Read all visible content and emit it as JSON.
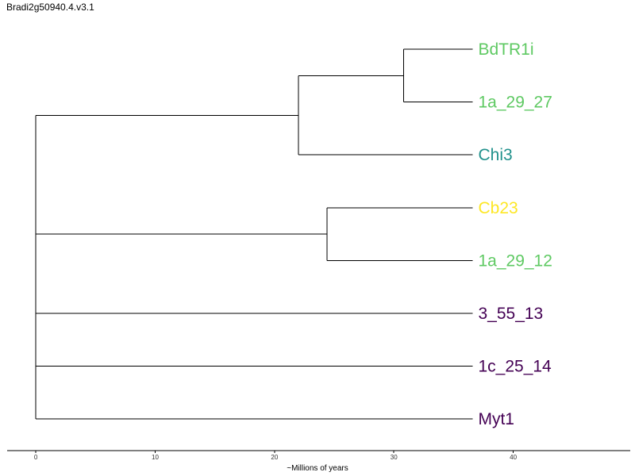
{
  "title": "Bradi2g50940.4.v3.1",
  "chart_data": {
    "type": "dendrogram",
    "title": "Bradi2g50940.4.v3.1",
    "xlabel": "~Millions of years",
    "xticks": [
      0,
      10,
      20,
      30,
      40
    ],
    "xlim": [
      -2.4,
      49.8
    ],
    "root_age": 36.6,
    "leaves": [
      {
        "name": "BdTR1i",
        "color": "#5ec962"
      },
      {
        "name": "1a_29_27",
        "color": "#5ec962"
      },
      {
        "name": "Chi3",
        "color": "#21918c"
      },
      {
        "name": "Cb23",
        "color": "#fde725"
      },
      {
        "name": "1a_29_12",
        "color": "#5ec962"
      },
      {
        "name": "3_55_13",
        "color": "#440154"
      },
      {
        "name": "1c_25_14",
        "color": "#440154"
      },
      {
        "name": "Myt1",
        "color": "#440154"
      }
    ],
    "nodes": [
      {
        "id": "n1",
        "x": 30.8,
        "children": [
          "BdTR1i",
          "1a_29_27"
        ]
      },
      {
        "id": "n2",
        "x": 22.0,
        "children": [
          "n1",
          "Chi3"
        ]
      },
      {
        "id": "n3",
        "x": 24.4,
        "children": [
          "Cb23",
          "1a_29_12"
        ]
      },
      {
        "id": "root",
        "x": 0,
        "children": [
          "n2",
          "n3",
          "3_55_13",
          "1c_25_14",
          "Myt1"
        ]
      }
    ]
  }
}
